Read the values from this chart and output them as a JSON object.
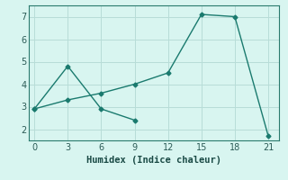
{
  "line1_x": [
    0,
    3,
    6,
    9,
    12,
    15,
    18,
    21
  ],
  "line1_y": [
    2.9,
    3.3,
    3.6,
    4.0,
    4.5,
    7.1,
    7.0,
    1.7
  ],
  "line2_x": [
    0,
    3,
    6,
    9
  ],
  "line2_y": [
    2.9,
    4.8,
    2.9,
    2.4
  ],
  "line_color": "#1a7a6e",
  "bg_color": "#d8f5f0",
  "grid_color": "#b8ddd8",
  "xlabel": "Humidex (Indice chaleur)",
  "ylim": [
    1.5,
    7.5
  ],
  "xlim": [
    -0.5,
    22
  ],
  "xticks": [
    0,
    3,
    6,
    9,
    12,
    15,
    18,
    21
  ],
  "yticks": [
    2,
    3,
    4,
    5,
    6,
    7
  ],
  "marker": "D",
  "markersize": 2.5,
  "linewidth": 1.0,
  "tick_fontsize": 7,
  "xlabel_fontsize": 7.5
}
